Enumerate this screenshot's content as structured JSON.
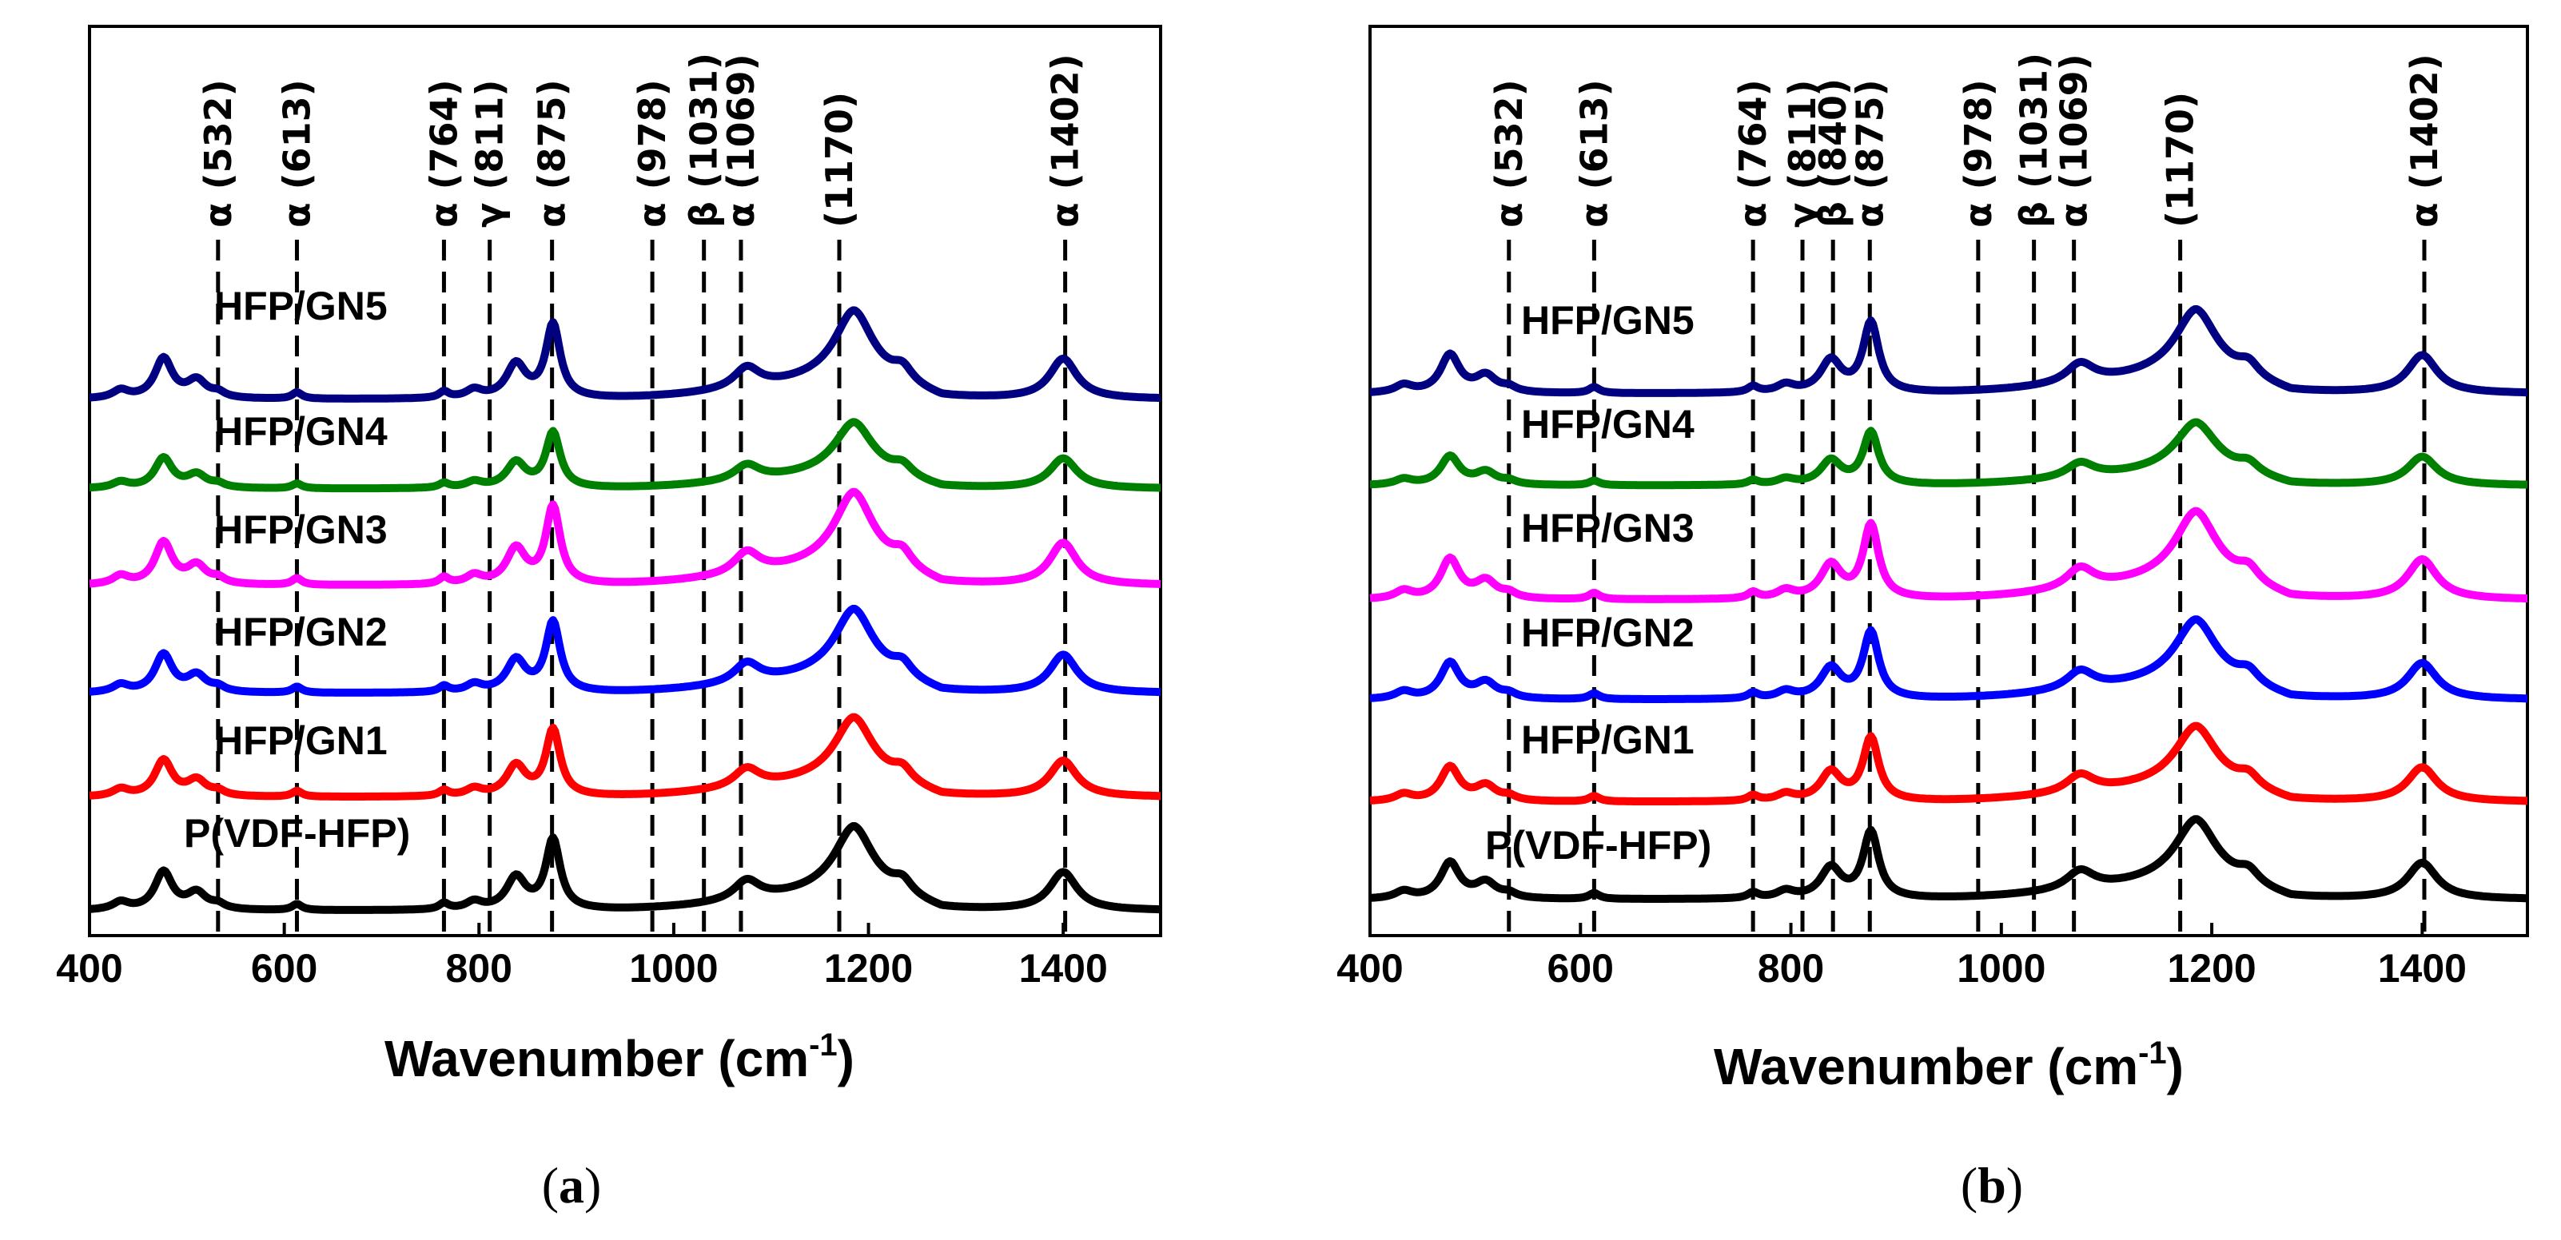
{
  "chart_data": [
    {
      "type": "line",
      "panel_label": "(a)",
      "panel_letter": "a",
      "title": "",
      "xlabel": "Wavenumber (cm",
      "xlabel_sup": "-1",
      "ylabel": "",
      "xlim": [
        400,
        1500
      ],
      "x_ticks": [
        400,
        600,
        800,
        1000,
        1200,
        1400
      ],
      "y_ticks_shown": false,
      "grid": false,
      "legend": "inline labels",
      "peaks": [
        {
          "position": 532,
          "label": "α (532)"
        },
        {
          "position": 613,
          "label": "α (613)"
        },
        {
          "position": 764,
          "label": "α (764)"
        },
        {
          "position": 811,
          "label": "γ (811)"
        },
        {
          "position": 875,
          "label": "α (875)"
        },
        {
          "position": 978,
          "label": "α (978)"
        },
        {
          "position": 1031,
          "label": "β (1031)"
        },
        {
          "position": 1069,
          "label": "α (1069)"
        },
        {
          "position": 1170,
          "label": "(1170)"
        },
        {
          "position": 1402,
          "label": "α (1402)"
        }
      ],
      "series": [
        {
          "name": "P(VDF-HFP)",
          "color": "#000000",
          "offset": 0
        },
        {
          "name": "HFP/GN1",
          "color": "#ff0000",
          "offset": 1
        },
        {
          "name": "HFP/GN2",
          "color": "#0000ff",
          "offset": 2
        },
        {
          "name": "HFP/GN3",
          "color": "#ff00ff",
          "offset": 3
        },
        {
          "name": "HFP/GN4",
          "color": "#008000",
          "offset": 4
        },
        {
          "name": "HFP/GN5",
          "color": "#000080",
          "offset": 5
        }
      ]
    },
    {
      "type": "line",
      "panel_label": "(b)",
      "panel_letter": "b",
      "title": "",
      "xlabel": "Wavenumber (cm",
      "xlabel_sup": "-1",
      "ylabel": "",
      "xlim": [
        400,
        1500
      ],
      "x_ticks": [
        400,
        600,
        800,
        1000,
        1200,
        1400
      ],
      "y_ticks_shown": false,
      "grid": false,
      "legend": "inline labels",
      "peaks": [
        {
          "position": 532,
          "label": "α (532)"
        },
        {
          "position": 613,
          "label": "α (613)"
        },
        {
          "position": 764,
          "label": "α (764)"
        },
        {
          "position": 811,
          "label": "γ (811)"
        },
        {
          "position": 840,
          "label": "β (840)"
        },
        {
          "position": 875,
          "label": "α (875)"
        },
        {
          "position": 978,
          "label": "α (978)"
        },
        {
          "position": 1031,
          "label": "β (1031)"
        },
        {
          "position": 1069,
          "label": "α (1069)"
        },
        {
          "position": 1170,
          "label": "(1170)"
        },
        {
          "position": 1402,
          "label": "α (1402)"
        }
      ],
      "series": [
        {
          "name": "P(VDF-HFP)",
          "color": "#000000",
          "offset": 0
        },
        {
          "name": "HFP/GN1",
          "color": "#ff0000",
          "offset": 1
        },
        {
          "name": "HFP/GN2",
          "color": "#0000ff",
          "offset": 2
        },
        {
          "name": "HFP/GN3",
          "color": "#ff00ff",
          "offset": 3
        },
        {
          "name": "HFP/GN4",
          "color": "#008000",
          "offset": 4
        },
        {
          "name": "HFP/GN5",
          "color": "#000080",
          "offset": 5
        }
      ]
    }
  ]
}
